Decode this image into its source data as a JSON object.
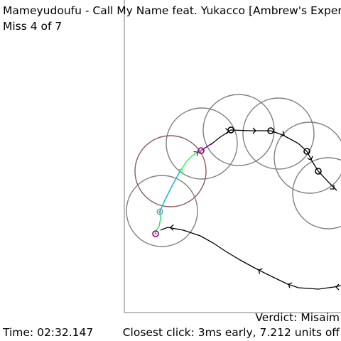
{
  "header": {
    "title": "Mameyudoufu - Call My Name feat. Yukacco [Ambrew's Expert]",
    "miss_counter": "Miss 4 of 7"
  },
  "footer": {
    "verdict": "Verdict: Misaim",
    "time": "Time: 02:32.147",
    "closest_click": "Closest click: 3ms early, 7.212 units off"
  },
  "colors": {
    "playfield_border": "#a8a8a8",
    "hit_circle": "#808080",
    "missed_circle": "#8c5a5a",
    "cursor_path": "#000000",
    "click_marker": "#800080",
    "hit_center": "#d07070",
    "cursor_now": "#2ab0d0"
  }
}
